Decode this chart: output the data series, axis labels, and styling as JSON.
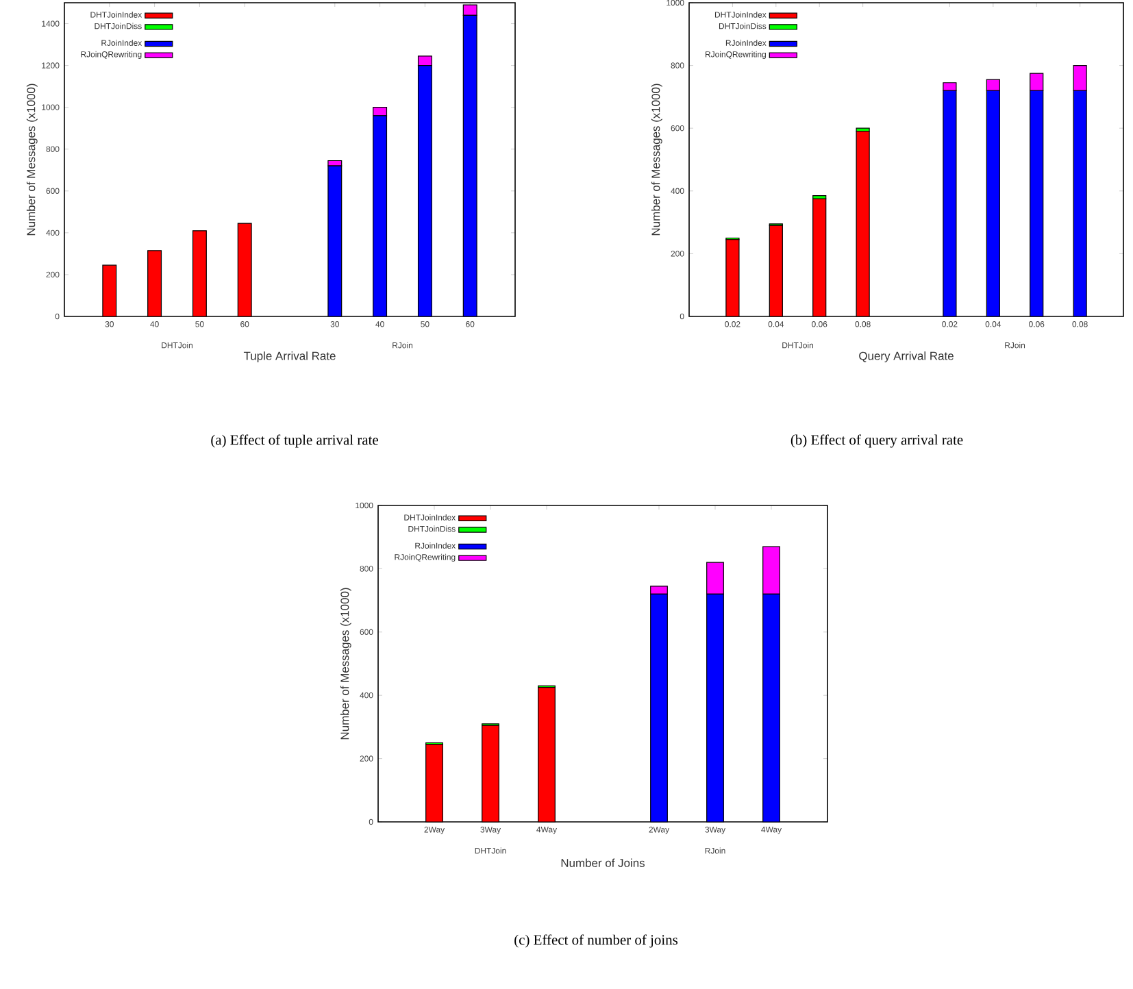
{
  "chart_data": [
    {
      "type": "bar",
      "stacked": true,
      "title": "(a) Effect of tuple arrival rate",
      "xlabel": "Tuple Arrival Rate",
      "ylabel": "Number of Messages (x1000)",
      "categories": [
        "30",
        "40",
        "50",
        "60",
        null,
        "30",
        "40",
        "50",
        "60"
      ],
      "series": [
        {
          "name": "DHTJoinIndex",
          "color": "#ff0000",
          "values": [
            245,
            315,
            410,
            445,
            null,
            null,
            null,
            null,
            null
          ]
        },
        {
          "name": "DHTJoinDiss",
          "color": "#00ff00",
          "values": [
            null,
            null,
            null,
            null,
            null,
            null,
            null,
            null,
            null
          ]
        },
        {
          "name": "RJoinIndex",
          "color": "#0000ff",
          "values": [
            null,
            null,
            null,
            null,
            null,
            720,
            960,
            1200,
            1440
          ]
        },
        {
          "name": "RJoinQRewriting",
          "color": "#ff00ff",
          "values": [
            null,
            null,
            null,
            null,
            null,
            25,
            40,
            45,
            50
          ]
        }
      ],
      "ylim": [
        0,
        1500
      ],
      "yticks": [
        0,
        200,
        400,
        600,
        800,
        1000,
        1200,
        1400
      ],
      "legend": "top left",
      "annotations": [
        "DHTJoin",
        "RJoin"
      ]
    },
    {
      "type": "bar",
      "stacked": true,
      "title": "(b) Effect of query arrival rate",
      "xlabel": "Query Arrival Rate",
      "ylabel": "Number of Messages (x1000)",
      "categories": [
        "0.02",
        "0.04",
        "0.06",
        "0.08",
        null,
        "0.02",
        "0.04",
        "0.06",
        "0.08"
      ],
      "series": [
        {
          "name": "DHTJoinIndex",
          "color": "#ff0000",
          "values": [
            245,
            290,
            375,
            590,
            null,
            null,
            null,
            null,
            null
          ]
        },
        {
          "name": "DHTJoinDiss",
          "color": "#00ff00",
          "values": [
            5,
            5,
            10,
            10,
            null,
            null,
            null,
            null,
            null
          ]
        },
        {
          "name": "RJoinIndex",
          "color": "#0000ff",
          "values": [
            null,
            null,
            null,
            null,
            null,
            720,
            720,
            720,
            720
          ]
        },
        {
          "name": "RJoinQRewriting",
          "color": "#ff00ff",
          "values": [
            null,
            null,
            null,
            null,
            null,
            25,
            35,
            55,
            80
          ]
        }
      ],
      "ylim": [
        0,
        1000
      ],
      "yticks": [
        0,
        200,
        400,
        600,
        800,
        1000
      ],
      "legend": "top left",
      "annotations": [
        "DHTJoin",
        "RJoin"
      ]
    },
    {
      "type": "bar",
      "stacked": true,
      "title": "(c) Effect of number of joins",
      "xlabel": "Number of Joins",
      "ylabel": "Number of Messages (x1000)",
      "categories": [
        "2Way",
        "3Way",
        "4Way",
        null,
        "2Way",
        "3Way",
        "4Way"
      ],
      "series": [
        {
          "name": "DHTJoinIndex",
          "color": "#ff0000",
          "values": [
            245,
            305,
            425,
            null,
            null,
            null,
            null
          ]
        },
        {
          "name": "DHTJoinDiss",
          "color": "#00ff00",
          "values": [
            5,
            5,
            5,
            null,
            null,
            null,
            null
          ]
        },
        {
          "name": "RJoinIndex",
          "color": "#0000ff",
          "values": [
            null,
            null,
            null,
            null,
            720,
            720,
            720
          ]
        },
        {
          "name": "RJoinQRewriting",
          "color": "#ff00ff",
          "values": [
            null,
            null,
            null,
            null,
            25,
            100,
            150
          ]
        }
      ],
      "ylim": [
        0,
        1000
      ],
      "yticks": [
        0,
        200,
        400,
        600,
        800,
        1000
      ],
      "legend": "top left",
      "annotations": [
        "DHTJoin",
        "RJoin"
      ]
    }
  ]
}
